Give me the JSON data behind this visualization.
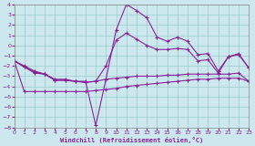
{
  "xlabel": "Windchill (Refroidissement éolien,°C)",
  "xmin": 0,
  "xmax": 23,
  "ymin": -8,
  "ymax": 4,
  "yticks": [
    -8,
    -7,
    -6,
    -5,
    -4,
    -3,
    -2,
    -1,
    0,
    1,
    2,
    3,
    4
  ],
  "xticks": [
    0,
    1,
    2,
    3,
    4,
    5,
    6,
    7,
    8,
    9,
    10,
    11,
    12,
    13,
    14,
    15,
    16,
    17,
    18,
    19,
    20,
    21,
    22,
    23
  ],
  "bg_color": "#cce8ee",
  "grid_color": "#99cccc",
  "line_color": "#882299",
  "line1_x": [
    0,
    1,
    2,
    3,
    4,
    5,
    6,
    7,
    8,
    9,
    10,
    11,
    12,
    13,
    14,
    15,
    16,
    17,
    18,
    19,
    20,
    21,
    22,
    23
  ],
  "line1_y": [
    -1.5,
    -2.0,
    -2.5,
    -2.8,
    -3.3,
    -3.3,
    -3.5,
    -3.5,
    -7.8,
    -3.3,
    1.5,
    4.0,
    3.4,
    2.7,
    0.8,
    0.4,
    0.8,
    0.4,
    -0.9,
    -0.8,
    -2.5,
    -1.1,
    -0.8,
    -2.2
  ],
  "line2_x": [
    0,
    1,
    2,
    3,
    4,
    5,
    6,
    7,
    8,
    9,
    10,
    11,
    12,
    13,
    14,
    15,
    16,
    17,
    18,
    19,
    20,
    21,
    22,
    23
  ],
  "line2_y": [
    -1.5,
    -2.1,
    -2.6,
    -2.8,
    -3.4,
    -3.4,
    -3.5,
    -3.6,
    -3.5,
    -3.3,
    -3.2,
    -3.1,
    -3.0,
    -3.0,
    -3.0,
    -2.9,
    -2.9,
    -2.8,
    -2.8,
    -2.8,
    -2.8,
    -2.8,
    -2.7,
    -3.5
  ],
  "line3_x": [
    0,
    1,
    2,
    3,
    4,
    5,
    6,
    7,
    8,
    9,
    10,
    11,
    12,
    13,
    14,
    15,
    16,
    17,
    18,
    19,
    20,
    21,
    22,
    23
  ],
  "line3_y": [
    -1.5,
    -4.5,
    -4.5,
    -4.5,
    -4.5,
    -4.5,
    -4.5,
    -4.5,
    -4.4,
    -4.3,
    -4.2,
    -4.0,
    -3.9,
    -3.8,
    -3.7,
    -3.6,
    -3.5,
    -3.4,
    -3.3,
    -3.3,
    -3.2,
    -3.2,
    -3.2,
    -3.5
  ],
  "line4_x": [
    0,
    1,
    2,
    3,
    4,
    5,
    6,
    7,
    8,
    9,
    10,
    11,
    12,
    13,
    14,
    15,
    16,
    17,
    18,
    19,
    20,
    21,
    22,
    23
  ],
  "line4_y": [
    -1.5,
    -2.1,
    -2.7,
    -2.8,
    -3.4,
    -3.4,
    -3.5,
    -3.6,
    -3.5,
    -2.0,
    0.5,
    1.2,
    0.6,
    0.0,
    -0.4,
    -0.4,
    -0.3,
    -0.4,
    -1.5,
    -1.4,
    -2.7,
    -1.1,
    -0.9,
    -2.2
  ]
}
